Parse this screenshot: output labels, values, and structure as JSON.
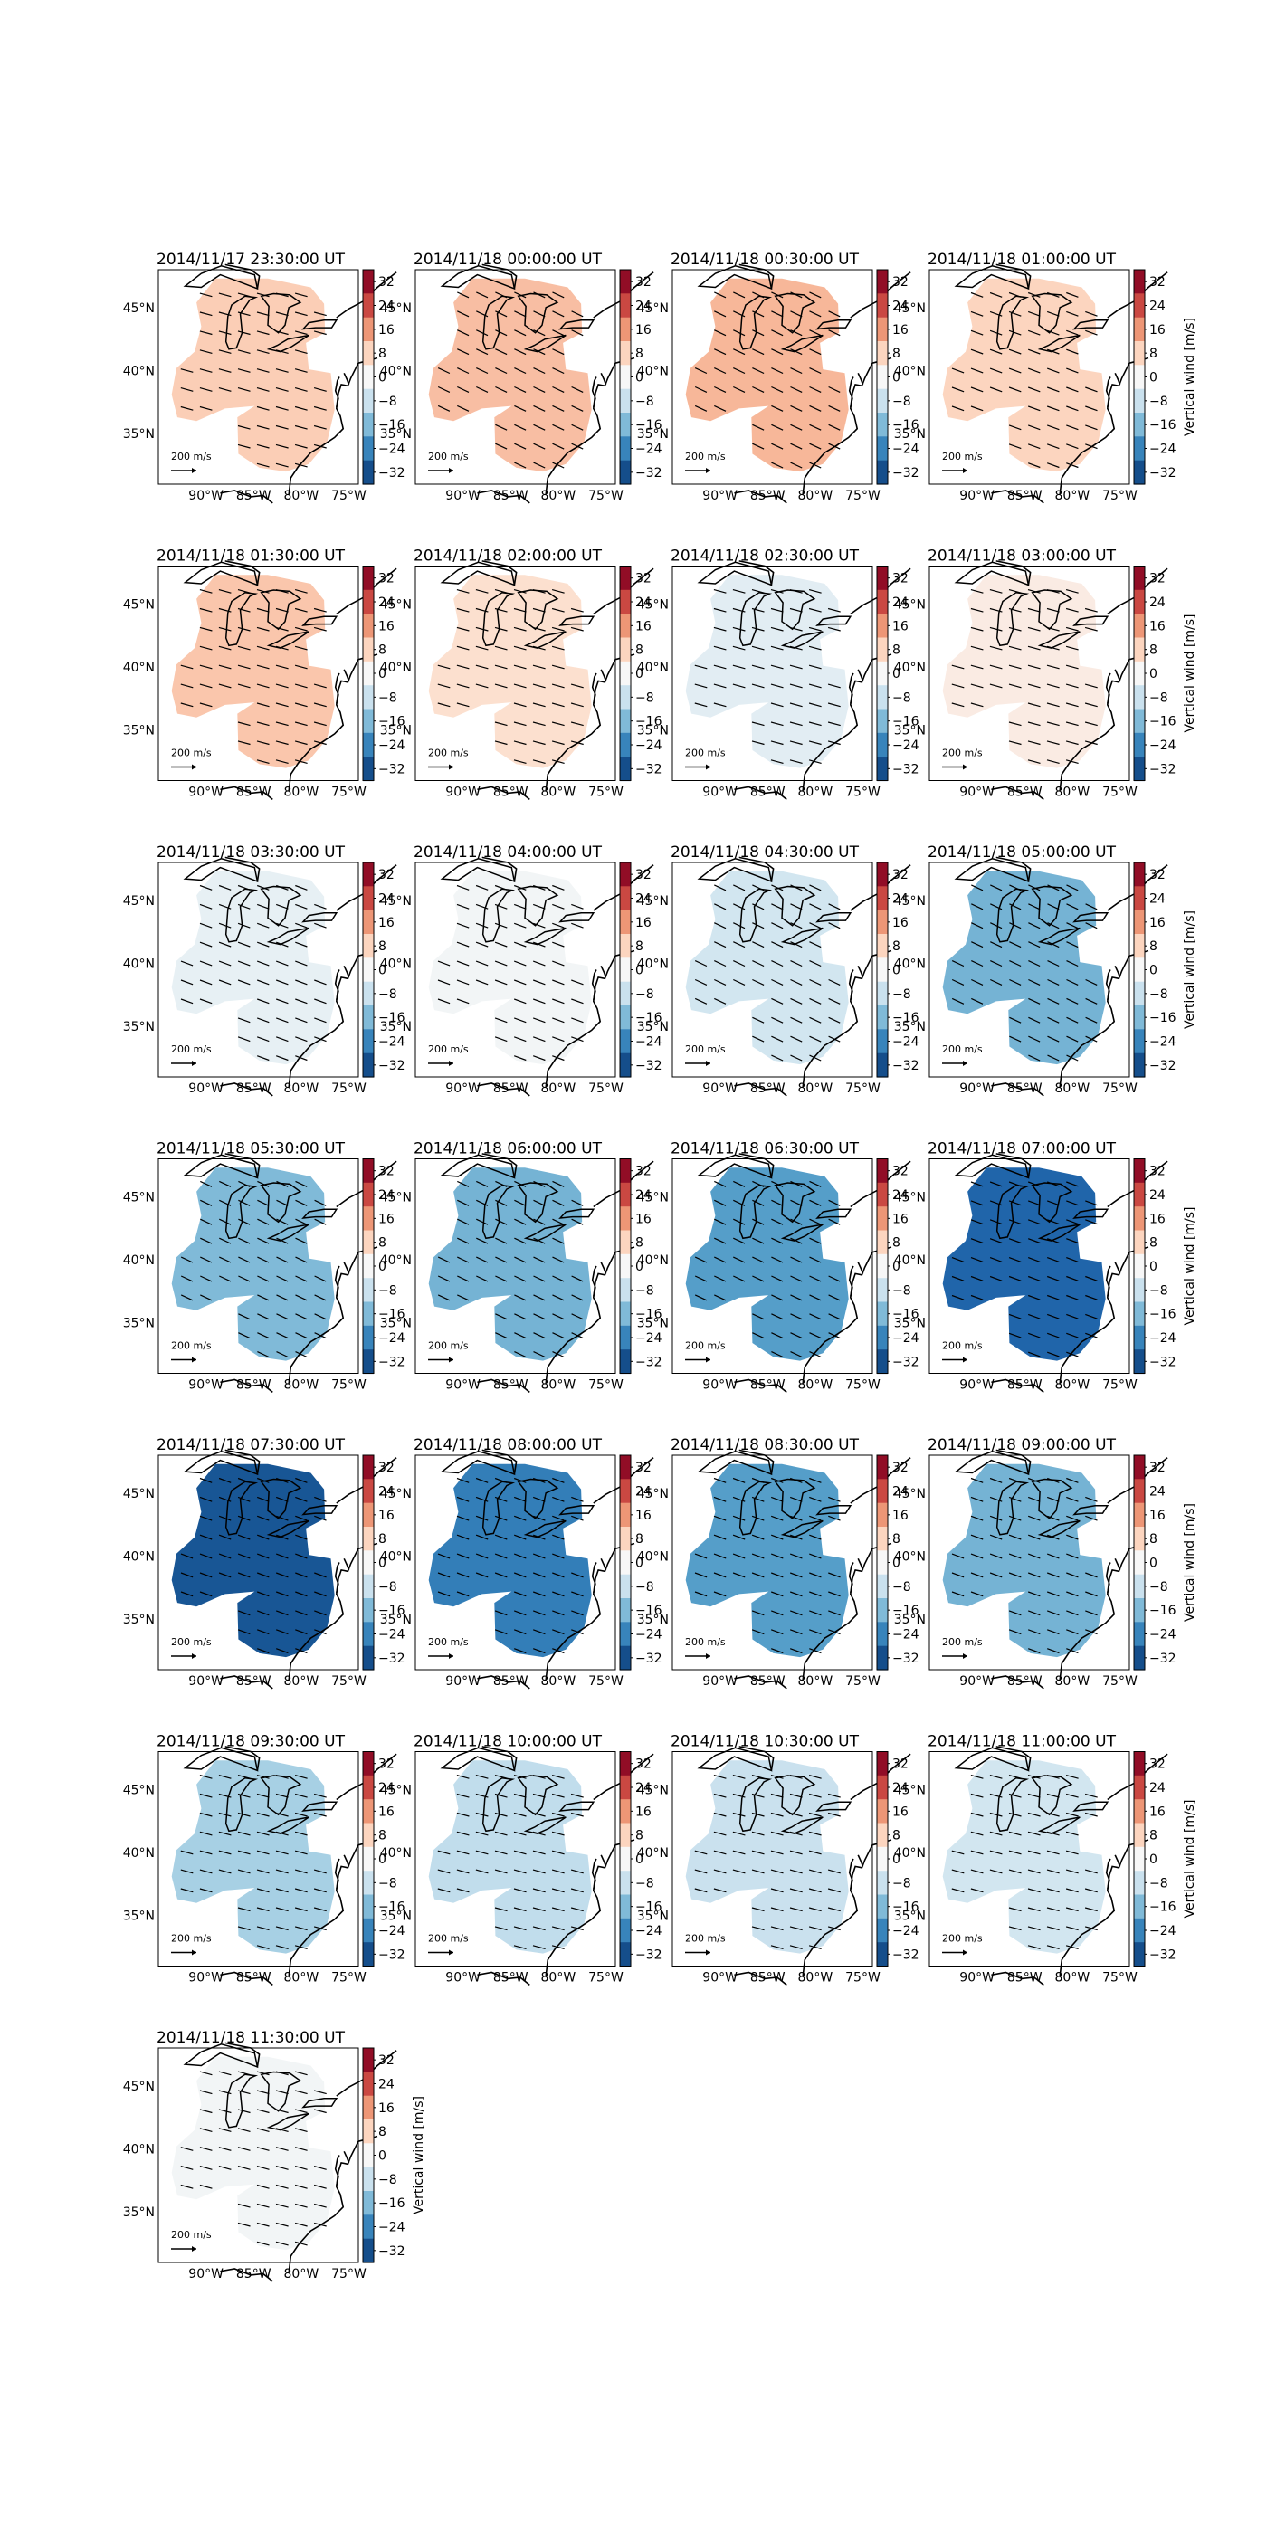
{
  "figure": {
    "colorbar_label": "Vertical wind [m/s]",
    "colorbar_ticks": [
      32,
      24,
      16,
      8,
      0,
      -8,
      -16,
      -24,
      -32
    ],
    "colormap": "RdBu_r",
    "lat_labels": [
      "45°N",
      "40°N",
      "35°N"
    ],
    "lat_values": [
      45,
      40,
      35
    ],
    "lon_labels": [
      "90°W",
      "85°W",
      "80°W",
      "75°W"
    ],
    "lon_values": [
      -90,
      -85,
      -80,
      -75
    ],
    "map_extent": {
      "lon": [
        -95,
        -74
      ],
      "lat": [
        31,
        48
      ]
    },
    "reference_vector_label": "200 m/s",
    "reference_vector_value": 200,
    "grid_columns": 4
  },
  "chart_data": [
    {
      "type": "heatmap",
      "title": "2014/11/17 23:30:00 UT",
      "vertical_wind": 9,
      "wind_direction_deg": -15
    },
    {
      "type": "heatmap",
      "title": "2014/11/18 00:00:00 UT",
      "vertical_wind": 11,
      "wind_direction_deg": -25
    },
    {
      "type": "heatmap",
      "title": "2014/11/18 00:30:00 UT",
      "vertical_wind": 12,
      "wind_direction_deg": -25
    },
    {
      "type": "heatmap",
      "title": "2014/11/18 01:00:00 UT",
      "vertical_wind": 8,
      "wind_direction_deg": -20
    },
    {
      "type": "heatmap",
      "title": "2014/11/18 01:30:00 UT",
      "vertical_wind": 10,
      "wind_direction_deg": -15
    },
    {
      "type": "heatmap",
      "title": "2014/11/18 02:00:00 UT",
      "vertical_wind": 6,
      "wind_direction_deg": -15
    },
    {
      "type": "heatmap",
      "title": "2014/11/18 02:30:00 UT",
      "vertical_wind": -4,
      "wind_direction_deg": -15
    },
    {
      "type": "heatmap",
      "title": "2014/11/18 03:00:00 UT",
      "vertical_wind": 3,
      "wind_direction_deg": -15
    },
    {
      "type": "heatmap",
      "title": "2014/11/18 03:30:00 UT",
      "vertical_wind": -3,
      "wind_direction_deg": -20
    },
    {
      "type": "heatmap",
      "title": "2014/11/18 04:00:00 UT",
      "vertical_wind": -1,
      "wind_direction_deg": -20
    },
    {
      "type": "heatmap",
      "title": "2014/11/18 04:30:00 UT",
      "vertical_wind": -7,
      "wind_direction_deg": -25
    },
    {
      "type": "heatmap",
      "title": "2014/11/18 05:00:00 UT",
      "vertical_wind": -17,
      "wind_direction_deg": -25
    },
    {
      "type": "heatmap",
      "title": "2014/11/18 05:30:00 UT",
      "vertical_wind": -16,
      "wind_direction_deg": -25
    },
    {
      "type": "heatmap",
      "title": "2014/11/18 06:00:00 UT",
      "vertical_wind": -17,
      "wind_direction_deg": -25
    },
    {
      "type": "heatmap",
      "title": "2014/11/18 06:30:00 UT",
      "vertical_wind": -20,
      "wind_direction_deg": -25
    },
    {
      "type": "heatmap",
      "title": "2014/11/18 07:00:00 UT",
      "vertical_wind": -29,
      "wind_direction_deg": -20
    },
    {
      "type": "heatmap",
      "title": "2014/11/18 07:30:00 UT",
      "vertical_wind": -31,
      "wind_direction_deg": -20
    },
    {
      "type": "heatmap",
      "title": "2014/11/18 08:00:00 UT",
      "vertical_wind": -25,
      "wind_direction_deg": -20
    },
    {
      "type": "heatmap",
      "title": "2014/11/18 08:30:00 UT",
      "vertical_wind": -20,
      "wind_direction_deg": -20
    },
    {
      "type": "heatmap",
      "title": "2014/11/18 09:00:00 UT",
      "vertical_wind": -17,
      "wind_direction_deg": -20
    },
    {
      "type": "heatmap",
      "title": "2014/11/18 09:30:00 UT",
      "vertical_wind": -12,
      "wind_direction_deg": -15
    },
    {
      "type": "heatmap",
      "title": "2014/11/18 10:00:00 UT",
      "vertical_wind": -9,
      "wind_direction_deg": -15
    },
    {
      "type": "heatmap",
      "title": "2014/11/18 10:30:00 UT",
      "vertical_wind": -8,
      "wind_direction_deg": -15
    },
    {
      "type": "heatmap",
      "title": "2014/11/18 11:00:00 UT",
      "vertical_wind": -7,
      "wind_direction_deg": -15
    },
    {
      "type": "heatmap",
      "title": "2014/11/18 11:30:00 UT",
      "vertical_wind": -1,
      "wind_direction_deg": -15
    }
  ]
}
